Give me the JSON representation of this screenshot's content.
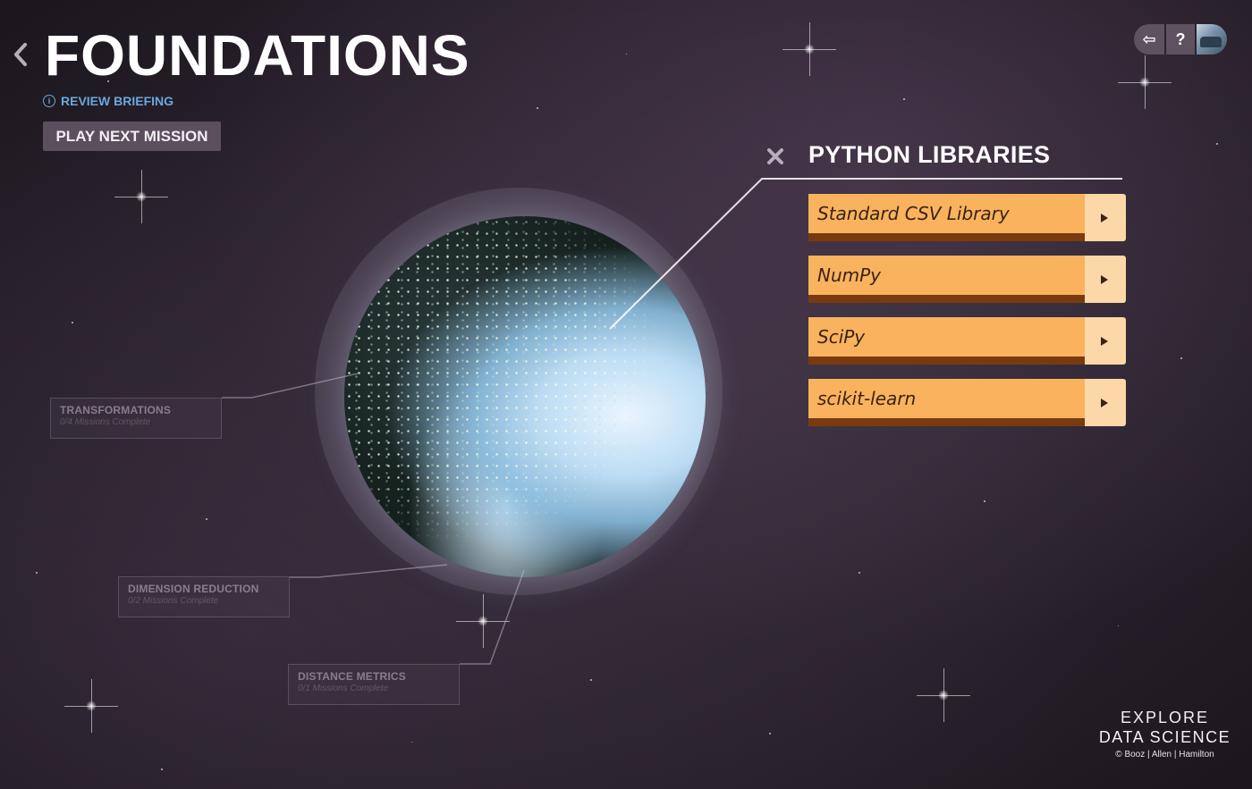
{
  "header": {
    "title": "FOUNDATIONS",
    "review_label": "REVIEW BRIEFING",
    "info_glyph": "i",
    "play_next_label": "PLAY NEXT MISSION"
  },
  "toolbar": {
    "exit_glyph": "⇦",
    "help_glyph": "?"
  },
  "panel": {
    "title": "PYTHON LIBRARIES",
    "libraries": [
      {
        "label": "Standard CSV Library"
      },
      {
        "label": "NumPy"
      },
      {
        "label": "SciPy"
      },
      {
        "label": "scikit-learn"
      }
    ]
  },
  "nodes": [
    {
      "title": "TRANSFORMATIONS",
      "subtitle": "0/4 Missions Complete"
    },
    {
      "title": "DIMENSION REDUCTION",
      "subtitle": "0/2 Missions Complete"
    },
    {
      "title": "DISTANCE METRICS",
      "subtitle": "0/1 Missions Complete"
    }
  ],
  "brand": {
    "line1": "EXPLORE",
    "line2": "DATA SCIENCE",
    "line3": "©  Booz | Allen | Hamilton"
  },
  "colors": {
    "library_button": "#f9b25e",
    "library_arrow": "#fcd7a8",
    "review_link": "#6aa7dc",
    "play_button": "#5b4f5e"
  }
}
